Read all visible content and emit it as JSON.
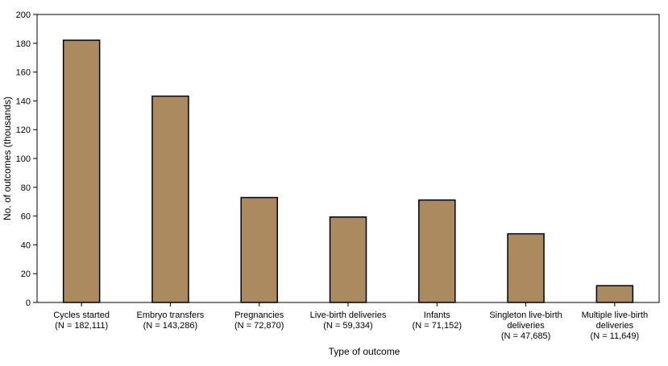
{
  "chart_data": {
    "type": "bar",
    "xlabel": "Type of outcome",
    "ylabel": "No. of outcomes  (thousands)",
    "ylim": [
      0,
      200
    ],
    "yticks": [
      0,
      20,
      40,
      60,
      80,
      100,
      120,
      140,
      160,
      180,
      200
    ],
    "grid": false,
    "bar_color": "#aa8a5e",
    "categories": [
      {
        "lines": [
          "Cycles started",
          "(N = 182,111)"
        ]
      },
      {
        "lines": [
          "Embryo transfers",
          "(N = 143,286)"
        ]
      },
      {
        "lines": [
          "Pregnancies",
          "(N = 72,870)"
        ]
      },
      {
        "lines": [
          "Live-birth deliveries",
          "(N = 59,334)"
        ]
      },
      {
        "lines": [
          "Infants",
          "(N = 71,152)"
        ]
      },
      {
        "lines": [
          "Singleton live-birth",
          "deliveries",
          "(N = 47,685)"
        ]
      },
      {
        "lines": [
          "Multiple live-birth",
          "deliveries",
          "(N = 11,649)"
        ]
      }
    ],
    "values": [
      182.111,
      143.286,
      72.87,
      59.334,
      71.152,
      47.685,
      11.649
    ]
  }
}
